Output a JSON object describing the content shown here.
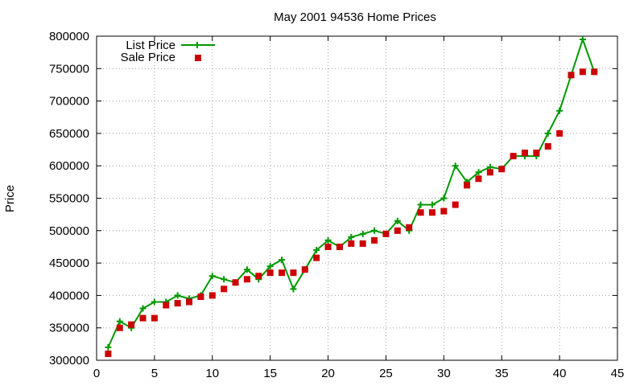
{
  "chart_data": {
    "type": "line",
    "title": "May 2001 94536 Home Prices",
    "xlabel": "",
    "ylabel": "Price",
    "xlim": [
      0,
      45
    ],
    "ylim": [
      300000,
      800000
    ],
    "x_ticks": [
      "0",
      "5",
      "10",
      "15",
      "20",
      "25",
      "30",
      "35",
      "40",
      "45"
    ],
    "y_ticks": [
      "300000",
      "350000",
      "400000",
      "450000",
      "500000",
      "550000",
      "600000",
      "650000",
      "700000",
      "750000",
      "800000"
    ],
    "grid": true,
    "legend_position": "top-left",
    "colors": {
      "list": "#009900",
      "sale": "#cc0000"
    },
    "series": [
      {
        "name": "List Price",
        "style": "line-with-plus-markers",
        "x": [
          1,
          2,
          3,
          4,
          5,
          6,
          7,
          8,
          9,
          10,
          11,
          12,
          13,
          14,
          15,
          16,
          17,
          18,
          19,
          20,
          21,
          22,
          23,
          24,
          25,
          26,
          27,
          28,
          29,
          30,
          31,
          32,
          33,
          34,
          35,
          36,
          37,
          38,
          39,
          40,
          41,
          42,
          43
        ],
        "values": [
          320000,
          360000,
          350000,
          380000,
          390000,
          390000,
          400000,
          395000,
          400000,
          430000,
          425000,
          420000,
          440000,
          425000,
          445000,
          455000,
          410000,
          440000,
          470000,
          485000,
          475000,
          490000,
          495000,
          500000,
          495000,
          515000,
          500000,
          540000,
          540000,
          550000,
          600000,
          575000,
          590000,
          598000,
          595000,
          615000,
          615000,
          615000,
          650000,
          685000,
          740000,
          795000,
          745000
        ]
      },
      {
        "name": "Sale Price",
        "style": "square-markers",
        "x": [
          1,
          2,
          3,
          4,
          5,
          6,
          7,
          8,
          9,
          10,
          11,
          12,
          13,
          14,
          15,
          16,
          17,
          18,
          19,
          20,
          21,
          22,
          23,
          24,
          25,
          26,
          27,
          28,
          29,
          30,
          31,
          32,
          33,
          34,
          35,
          36,
          37,
          38,
          39,
          40,
          41,
          42,
          43
        ],
        "values": [
          310000,
          350000,
          355000,
          365000,
          365000,
          385000,
          388000,
          390000,
          398000,
          400000,
          410000,
          420000,
          425000,
          430000,
          435000,
          435000,
          435000,
          440000,
          458000,
          475000,
          475000,
          480000,
          480000,
          485000,
          495000,
          500000,
          505000,
          528000,
          528000,
          530000,
          540000,
          570000,
          580000,
          590000,
          595000,
          615000,
          620000,
          620000,
          630000,
          650000,
          740000,
          745000,
          745000
        ]
      }
    ]
  }
}
